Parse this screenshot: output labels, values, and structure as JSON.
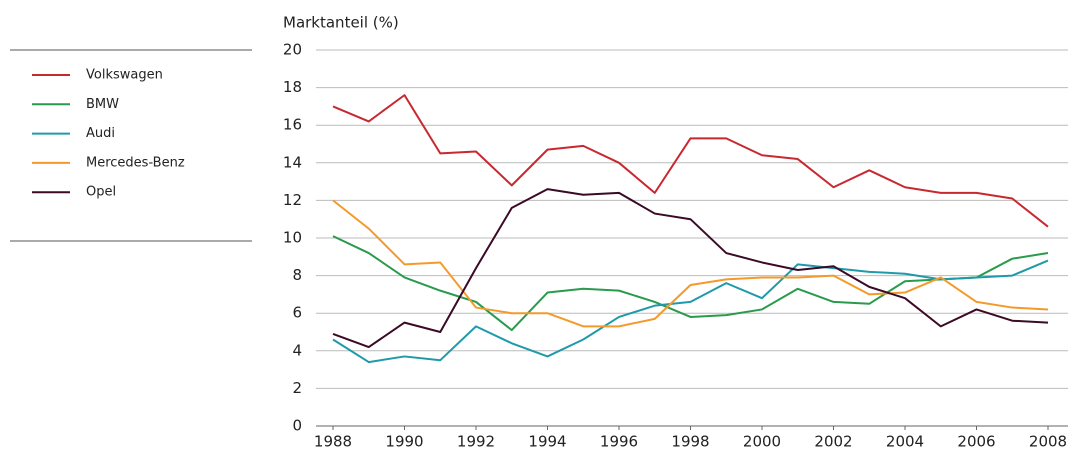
{
  "chart_data": {
    "type": "line",
    "y_label": "Marktanteil (%)",
    "x": [
      1988,
      1989,
      1990,
      1991,
      1992,
      1993,
      1994,
      1995,
      1996,
      1997,
      1998,
      1999,
      2000,
      2001,
      2002,
      2003,
      2004,
      2005,
      2006,
      2007,
      2008
    ],
    "xlim": [
      1988,
      2008
    ],
    "xticks": [
      1988,
      1990,
      1992,
      1994,
      1996,
      1998,
      2000,
      2002,
      2004,
      2006,
      2008
    ],
    "ylim": [
      0,
      20
    ],
    "yticks": [
      0,
      2,
      4,
      6,
      8,
      10,
      12,
      14,
      16,
      18,
      20
    ],
    "grid": true,
    "legend": "left",
    "series": [
      {
        "name": "Volkswagen",
        "color": "#c8282f",
        "values": [
          17.0,
          16.2,
          17.6,
          14.5,
          14.6,
          12.8,
          14.7,
          14.9,
          14.0,
          12.4,
          15.3,
          15.3,
          14.4,
          14.2,
          12.7,
          13.6,
          12.7,
          12.4,
          12.4,
          12.1,
          10.6
        ]
      },
      {
        "name": "BMW",
        "color": "#2a9a4c",
        "values": [
          10.1,
          9.2,
          7.9,
          7.2,
          6.6,
          5.1,
          7.1,
          7.3,
          7.2,
          6.6,
          5.8,
          5.9,
          6.2,
          7.3,
          6.6,
          6.5,
          7.7,
          7.8,
          7.9,
          8.9,
          9.2
        ]
      },
      {
        "name": "Audi",
        "color": "#1f9aa8",
        "values": [
          4.6,
          3.4,
          3.7,
          3.5,
          5.3,
          4.4,
          3.7,
          4.6,
          5.8,
          6.4,
          6.6,
          7.6,
          6.8,
          8.6,
          8.4,
          8.2,
          8.1,
          7.8,
          7.9,
          8.0,
          8.8
        ]
      },
      {
        "name": "Mercedes-Benz",
        "color": "#f39a2b",
        "values": [
          12.0,
          10.5,
          8.6,
          8.7,
          6.3,
          6.0,
          6.0,
          5.3,
          5.3,
          5.7,
          7.5,
          7.8,
          7.9,
          7.9,
          8.0,
          7.0,
          7.1,
          7.9,
          6.6,
          6.3,
          6.2
        ]
      },
      {
        "name": "Opel",
        "color": "#3a0a26",
        "values": [
          4.9,
          4.2,
          5.5,
          5.0,
          8.4,
          11.6,
          12.6,
          12.3,
          12.4,
          11.3,
          11.0,
          9.2,
          8.7,
          8.3,
          8.5,
          7.4,
          6.8,
          5.3,
          6.2,
          5.6,
          5.5
        ]
      }
    ]
  }
}
